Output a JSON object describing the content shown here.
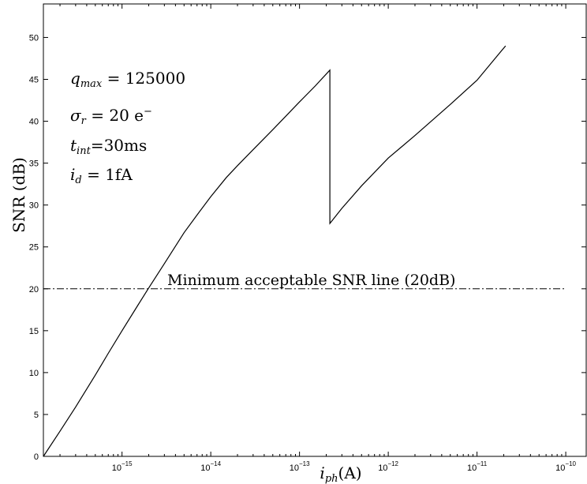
{
  "chart_data": {
    "type": "line",
    "xscale": "log",
    "xlim": [
      1.3e-16,
      1.7e-10
    ],
    "ylim": [
      0,
      54
    ],
    "xlabel": {
      "main": "i",
      "sub": "ph",
      "unit": "(A)"
    },
    "ylabel": "SNR (dB)",
    "xticks": [
      {
        "base": "10",
        "exp": "−15",
        "value": 1e-15
      },
      {
        "base": "10",
        "exp": "−14",
        "value": 1e-14
      },
      {
        "base": "10",
        "exp": "−13",
        "value": 1e-13
      },
      {
        "base": "10",
        "exp": "−12",
        "value": 1e-12
      },
      {
        "base": "10",
        "exp": "−11",
        "value": 1e-11
      },
      {
        "base": "10",
        "exp": "−10",
        "value": 1e-10
      }
    ],
    "yticks": [
      0,
      5,
      10,
      15,
      20,
      25,
      30,
      35,
      40,
      45,
      50
    ],
    "grid": false,
    "series": [
      {
        "style": "solid",
        "color": "#000000",
        "x": [
          1.3e-16,
          2e-16,
          3e-16,
          5e-16,
          7e-16,
          1e-15,
          1.5e-15,
          2e-15,
          3e-15,
          5e-15,
          7e-15,
          1e-14,
          1.5e-14,
          2e-14,
          3e-14,
          5e-14,
          7e-14,
          1e-13,
          1.5e-13,
          2.2e-13,
          2.2e-13,
          3e-13,
          5e-13,
          1e-12,
          2e-12,
          5e-12,
          1e-11,
          2.1e-11
        ],
        "y": [
          0,
          3.0,
          5.9,
          9.7,
          12.3,
          15.0,
          18.0,
          20.1,
          23.0,
          26.7,
          28.8,
          31.0,
          33.3,
          34.7,
          36.6,
          39.0,
          40.6,
          42.3,
          44.2,
          46.1,
          27.8,
          29.6,
          32.3,
          35.6,
          38.3,
          42.0,
          44.9,
          49.0
        ]
      }
    ],
    "threshold": {
      "y": 20,
      "style": "dash-dot",
      "label": "Minimum acceptable SNR line (20dB)"
    },
    "params": [
      {
        "sym": "q",
        "sub": "max",
        "rest": " = 125000"
      },
      {
        "sym": "σ",
        "sub": "r",
        "rest": " = 20 e",
        "sup": "−"
      },
      {
        "sym": "t",
        "sub": "int",
        "rest": "=30ms"
      },
      {
        "sym": "i",
        "sub": "d",
        "rest": " = 1fA"
      }
    ]
  }
}
